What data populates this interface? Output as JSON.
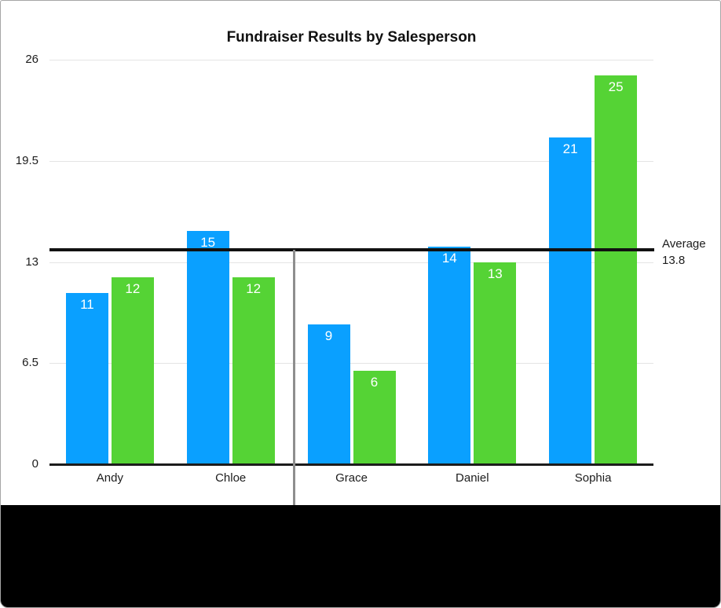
{
  "chart_data": {
    "type": "bar",
    "title": "Fundraiser Results by Salesperson",
    "categories": [
      "Andy",
      "Chloe",
      "Grace",
      "Daniel",
      "Sophia"
    ],
    "series": [
      {
        "name": "series_1",
        "color": "#0aa0ff",
        "values": [
          11,
          15,
          9,
          14,
          21
        ]
      },
      {
        "name": "series_2",
        "color": "#55d335",
        "values": [
          12,
          12,
          6,
          13,
          25
        ]
      }
    ],
    "ylim": [
      0,
      26
    ],
    "yticks": [
      0,
      6.5,
      13,
      19.5,
      26
    ],
    "ytick_labels": [
      "0",
      "6.5",
      "13",
      "19.5",
      "26"
    ],
    "grid": true,
    "legend": "none",
    "value_labels_shown": true,
    "average_line": {
      "value": 13.8,
      "label_line1": "Average",
      "label_line2": "13.8"
    }
  },
  "colors": {
    "bar_blue": "#0aa0ff",
    "bar_green": "#55d335",
    "gridline": "#e4e4e4",
    "axis": "#1c1c1c",
    "average_line": "#111111",
    "drag_indicator": "#8e8e8e",
    "value_label_text": "#ffffff",
    "figure_border": "#a6a6a6",
    "bottom_band": "#000000"
  },
  "annotations": {
    "drag_indicator": "vertical-gray-pointer-line-between-chloe-and-grace"
  }
}
